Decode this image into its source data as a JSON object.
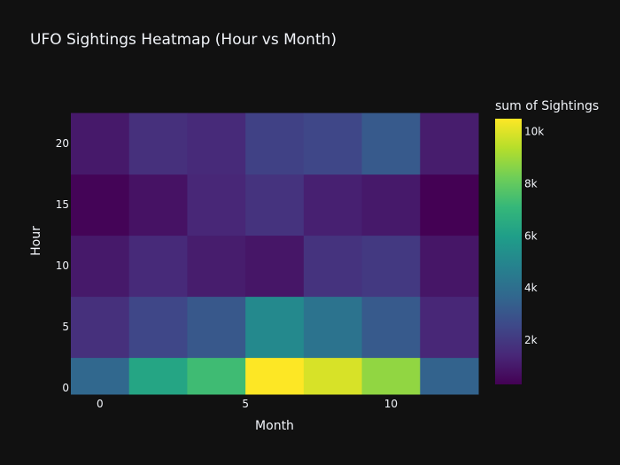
{
  "chart_data": {
    "type": "heatmap",
    "title": "UFO Sightings Heatmap (Hour vs Month)",
    "xlabel": "Month",
    "ylabel": "Hour",
    "x_ticks": [
      "0",
      "5",
      "10"
    ],
    "x_tick_values": [
      0,
      5,
      10
    ],
    "y_ticks": [
      "0",
      "5",
      "10",
      "15",
      "20"
    ],
    "y_tick_values": [
      0,
      5,
      10,
      15,
      20
    ],
    "x_bins": [
      0,
      2,
      4,
      6,
      8,
      10,
      12
    ],
    "y_bins": [
      0,
      5,
      10,
      15,
      20
    ],
    "xlim": [
      -1,
      13
    ],
    "ylim": [
      -0.5,
      24.5
    ],
    "bin_width_x": 2,
    "bin_width_y": 5,
    "z": [
      [
        3700,
        6300,
        7300,
        10500,
        9900,
        8800,
        3500
      ],
      [
        1700,
        2500,
        3100,
        5100,
        4200,
        3200,
        1400
      ],
      [
        1000,
        1500,
        1100,
        900,
        1800,
        2000,
        900
      ],
      [
        400,
        800,
        1400,
        1800,
        1200,
        1000,
        300
      ],
      [
        1000,
        1700,
        1500,
        2300,
        2500,
        3200,
        1100
      ]
    ],
    "colorbar": {
      "title": "sum of Sightings",
      "ticks": [
        "2k",
        "4k",
        "6k",
        "8k",
        "10k"
      ],
      "tick_values": [
        2000,
        4000,
        6000,
        8000,
        10000
      ],
      "zmin": 300,
      "zmax": 10500,
      "colorscale": "Viridis"
    },
    "colors": {
      "background": "#111111",
      "text": "#f2f5fa"
    }
  }
}
